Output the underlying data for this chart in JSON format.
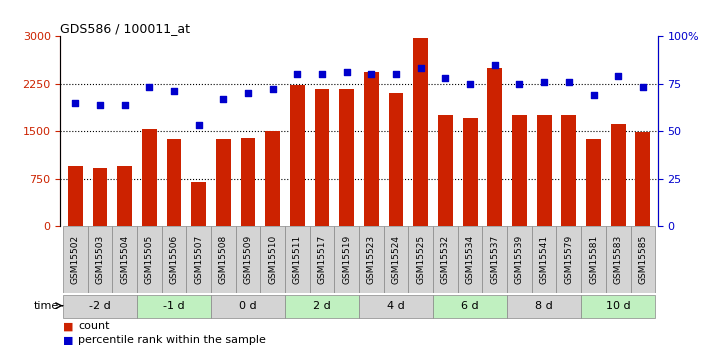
{
  "title": "GDS586 / 100011_at",
  "samples": [
    "GSM15502",
    "GSM15503",
    "GSM15504",
    "GSM15505",
    "GSM15506",
    "GSM15507",
    "GSM15508",
    "GSM15509",
    "GSM15510",
    "GSM15511",
    "GSM15517",
    "GSM15519",
    "GSM15523",
    "GSM15524",
    "GSM15525",
    "GSM15532",
    "GSM15534",
    "GSM15537",
    "GSM15539",
    "GSM15541",
    "GSM15579",
    "GSM15581",
    "GSM15583",
    "GSM15585"
  ],
  "counts": [
    950,
    920,
    950,
    1530,
    1380,
    700,
    1380,
    1390,
    1500,
    2230,
    2170,
    2170,
    2440,
    2100,
    2970,
    1750,
    1700,
    2500,
    1750,
    1750,
    1750,
    1380,
    1620,
    1480
  ],
  "percentiles": [
    65,
    64,
    64,
    73,
    71,
    53,
    67,
    70,
    72,
    80,
    80,
    81,
    80,
    80,
    83,
    78,
    75,
    85,
    75,
    76,
    76,
    69,
    79,
    73
  ],
  "time_groups": [
    {
      "label": "-2 d",
      "start": 0,
      "end": 3,
      "color": "#d4d4d4"
    },
    {
      "label": "-1 d",
      "start": 3,
      "end": 6,
      "color": "#c0f0c0"
    },
    {
      "label": "0 d",
      "start": 6,
      "end": 9,
      "color": "#d4d4d4"
    },
    {
      "label": "2 d",
      "start": 9,
      "end": 12,
      "color": "#c0f0c0"
    },
    {
      "label": "4 d",
      "start": 12,
      "end": 15,
      "color": "#d4d4d4"
    },
    {
      "label": "6 d",
      "start": 15,
      "end": 18,
      "color": "#c0f0c0"
    },
    {
      "label": "8 d",
      "start": 18,
      "end": 21,
      "color": "#d4d4d4"
    },
    {
      "label": "10 d",
      "start": 21,
      "end": 24,
      "color": "#c0f0c0"
    }
  ],
  "sample_box_color": "#d4d4d4",
  "bar_color": "#cc2200",
  "dot_color": "#0000cc",
  "ylim_left": [
    0,
    3000
  ],
  "ylim_right": [
    0,
    100
  ],
  "yticks_left": [
    0,
    750,
    1500,
    2250,
    3000
  ],
  "yticks_right": [
    0,
    25,
    50,
    75,
    100
  ],
  "background_color": "#ffffff"
}
